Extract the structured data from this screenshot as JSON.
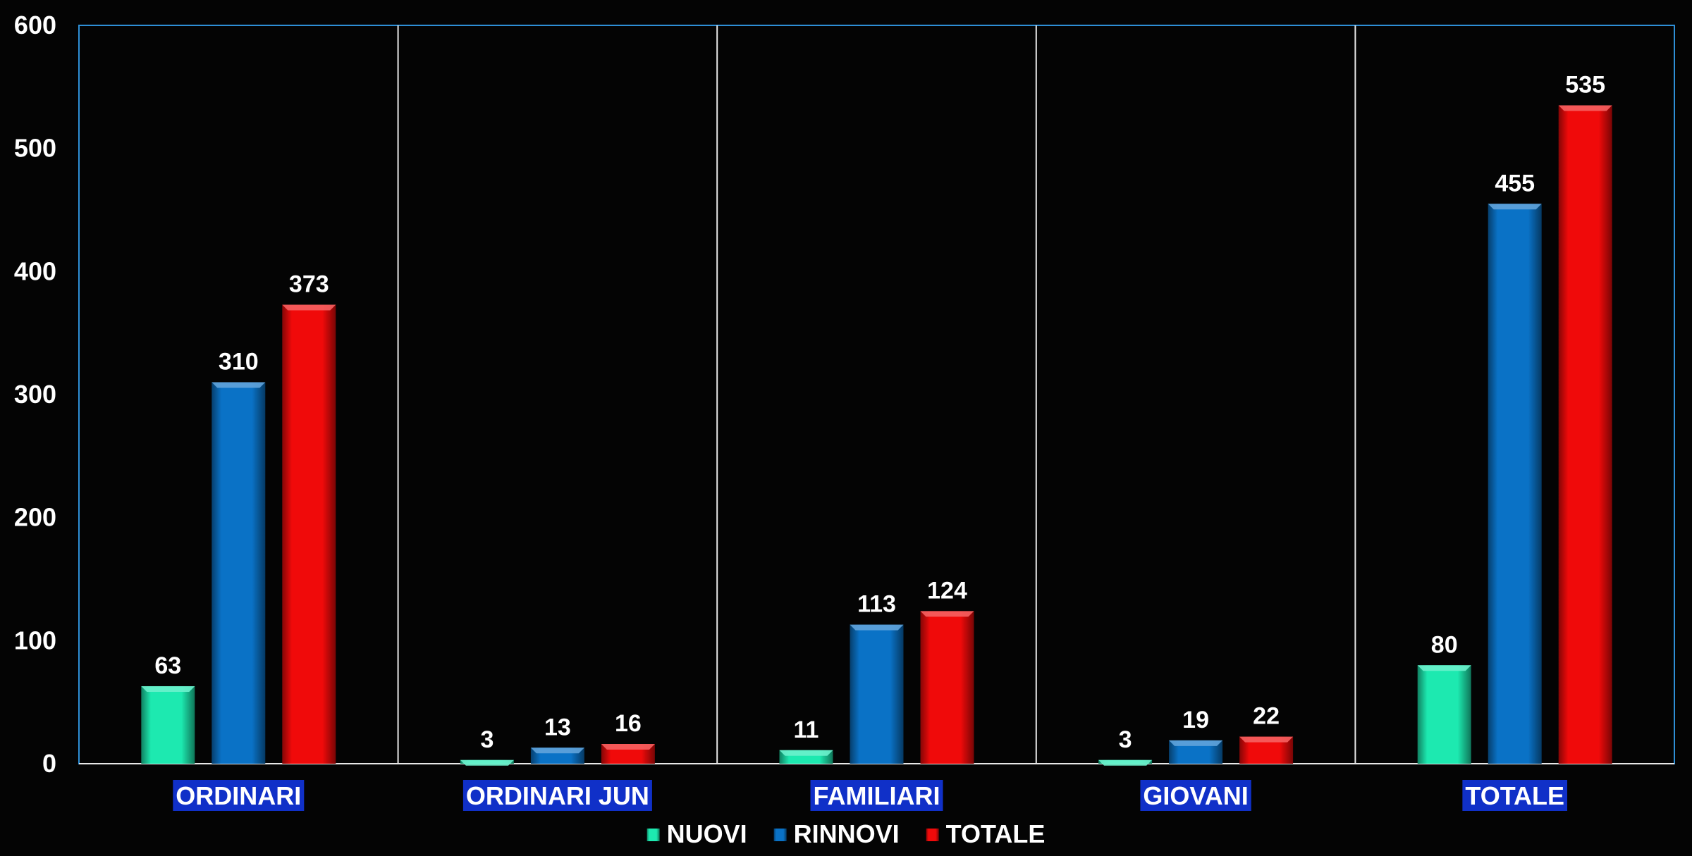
{
  "chart_data": {
    "type": "bar",
    "title": "",
    "xlabel": "",
    "ylabel": "",
    "ylim": [
      0,
      600
    ],
    "yticks": [
      "0",
      "100",
      "200",
      "300",
      "400",
      "500",
      "600"
    ],
    "grid": "vertical category separators only",
    "legend_position": "bottom-center",
    "categories": [
      "ORDINARI",
      "ORDINARI JUN",
      "FAMILIARI",
      "GIOVANI",
      "TOTALE"
    ],
    "series": [
      {
        "name": "NUOVI",
        "color": "#1de9b0",
        "values": [
          63,
          3,
          11,
          3,
          80
        ]
      },
      {
        "name": "RINNOVI",
        "color": "#0a72c6",
        "values": [
          310,
          13,
          113,
          19,
          455
        ]
      },
      {
        "name": "TOTALE",
        "color": "#f00a0a",
        "values": [
          373,
          16,
          124,
          22,
          535
        ]
      }
    ],
    "category_label_bg": "#1030c8",
    "background": "#040404",
    "frame_color": "#2e8fd6"
  }
}
